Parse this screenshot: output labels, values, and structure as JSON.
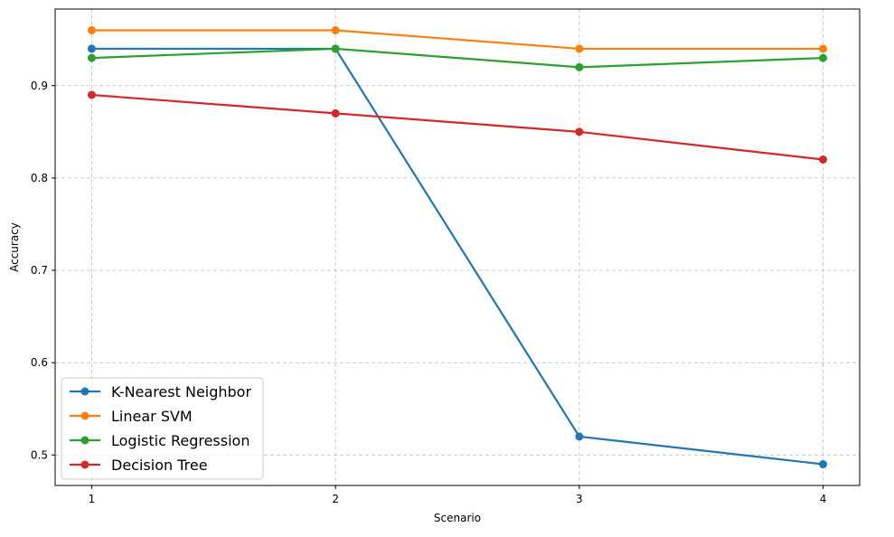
{
  "chart_data": {
    "type": "line",
    "title": "",
    "xlabel": "Scenario",
    "ylabel": "Accuracy",
    "x": [
      1,
      2,
      3,
      4
    ],
    "x_tick_labels": [
      "1",
      "2",
      "3",
      "4"
    ],
    "xlim": [
      0.85,
      4.15
    ],
    "ylim": [
      0.467,
      0.983
    ],
    "y_ticks": [
      0.5,
      0.6,
      0.7,
      0.8,
      0.9
    ],
    "y_tick_labels": [
      "0.5",
      "0.6",
      "0.7",
      "0.8",
      "0.9"
    ],
    "grid": true,
    "legend_position": "lower-left",
    "series": [
      {
        "name": "K-Nearest Neighbor",
        "color": "#1f77b4",
        "values": [
          0.94,
          0.94,
          0.52,
          0.49
        ]
      },
      {
        "name": "Linear SVM",
        "color": "#ff7f0e",
        "values": [
          0.96,
          0.96,
          0.94,
          0.94
        ]
      },
      {
        "name": "Logistic Regression",
        "color": "#2ca02c",
        "values": [
          0.93,
          0.94,
          0.92,
          0.93
        ]
      },
      {
        "name": "Decision Tree",
        "color": "#d62728",
        "values": [
          0.89,
          0.87,
          0.85,
          0.82
        ]
      }
    ]
  }
}
